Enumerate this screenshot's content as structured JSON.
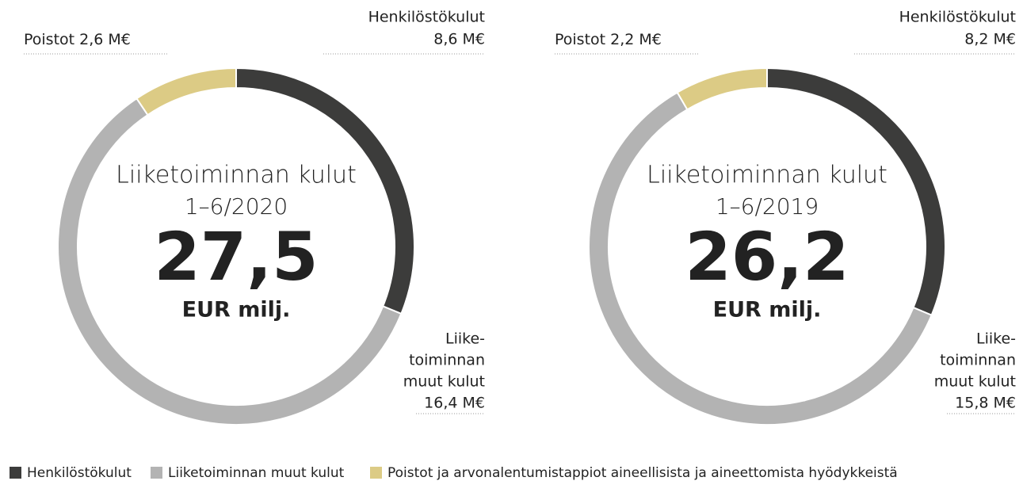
{
  "chart_data": [
    {
      "type": "donut",
      "title": "Liiketoiminnan kulut",
      "subtitle": "1–6/2020",
      "total": {
        "value": 27.5,
        "label": "27,5"
      },
      "unit": "EUR milj.",
      "categories": [
        [
          "Henkilöstökulut"
        ],
        [
          "Liike-",
          "toiminnan",
          "muut kulut"
        ],
        [
          "Poistot"
        ]
      ],
      "values": [
        8.6,
        16.4,
        2.6
      ],
      "value_labels": [
        "8,6 M€",
        "16,4 M€",
        "2,6 M€"
      ],
      "colors": [
        "#3c3c3b",
        "#b3b3b3",
        "#dccb85"
      ]
    },
    {
      "type": "donut",
      "title": "Liiketoiminnan kulut",
      "subtitle": "1–6/2019",
      "total": {
        "value": 26.2,
        "label": "26,2"
      },
      "unit": "EUR milj.",
      "categories": [
        [
          "Henkilöstökulut"
        ],
        [
          "Liike-",
          "toiminnan",
          "muut kulut"
        ],
        [
          "Poistot"
        ]
      ],
      "values": [
        8.2,
        15.8,
        2.2
      ],
      "value_labels": [
        "8,2 M€",
        "15,8 M€",
        "2,2 M€"
      ],
      "colors": [
        "#3c3c3b",
        "#b3b3b3",
        "#dccb85"
      ]
    }
  ],
  "legend": [
    {
      "name": "Henkilöstökulut",
      "color": "#3c3c3b"
    },
    {
      "name": "Liiketoiminnan muut kulut",
      "color": "#b3b3b3"
    },
    {
      "name": "Poistot ja arvonalentumistappiot aineellisista ja aineettomista hyödykkeistä",
      "color": "#dccb85"
    }
  ]
}
